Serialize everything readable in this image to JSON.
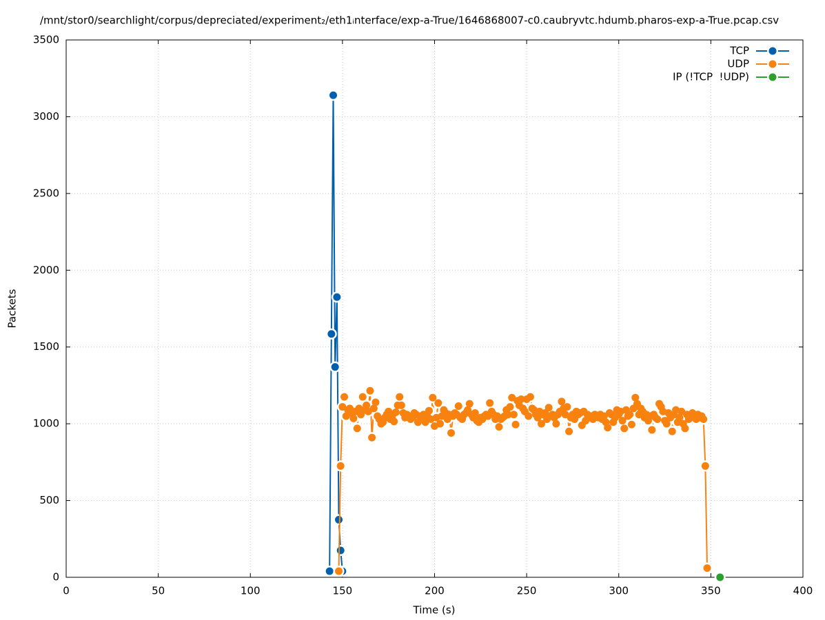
{
  "chart_data": {
    "type": "line",
    "title": "/mnt/stor0/searchlight/corpus/depreciated/experiment₂/eth1ᵢnterface/exp-a-True/1646868007-c0.caubryvtc.hdumb.pharos-exp-a-True.pcap.csv",
    "x_label": "Time (s)",
    "y_label": "Packets",
    "xlim": [
      0,
      400
    ],
    "xticks": [
      0,
      50,
      100,
      150,
      200,
      250,
      300,
      350,
      400
    ],
    "ylim": [
      0,
      3500
    ],
    "yticks": [
      0,
      500,
      1000,
      1500,
      2000,
      2500,
      3000,
      3500
    ],
    "grid": true,
    "legend": "top-right",
    "series": [
      {
        "name": "TCP",
        "color": "#0060ad",
        "x": [
          143,
          144,
          145,
          146,
          147,
          148,
          149,
          150
        ],
        "values": [
          40,
          1585,
          3140,
          1370,
          1825,
          375,
          175,
          40
        ]
      },
      {
        "name": "UDP",
        "color": "#f7820f",
        "x": [
          148,
          149,
          150,
          151,
          152,
          153,
          154,
          155,
          156,
          157,
          158,
          159,
          160,
          161,
          162,
          163,
          164,
          165,
          166,
          167,
          168,
          169,
          170,
          171,
          172,
          173,
          174,
          175,
          176,
          177,
          178,
          179,
          180,
          181,
          182,
          183,
          184,
          185,
          186,
          187,
          188,
          189,
          190,
          191,
          192,
          193,
          194,
          195,
          196,
          197,
          198,
          199,
          200,
          201,
          202,
          203,
          204,
          205,
          206,
          207,
          208,
          209,
          210,
          211,
          212,
          213,
          214,
          215,
          216,
          217,
          218,
          219,
          220,
          221,
          222,
          223,
          224,
          225,
          226,
          227,
          228,
          229,
          230,
          231,
          232,
          233,
          234,
          235,
          236,
          237,
          238,
          239,
          240,
          241,
          242,
          243,
          244,
          245,
          246,
          247,
          248,
          249,
          250,
          251,
          252,
          253,
          254,
          255,
          256,
          257,
          258,
          259,
          260,
          261,
          262,
          263,
          264,
          265,
          266,
          267,
          268,
          269,
          270,
          271,
          272,
          273,
          274,
          275,
          276,
          277,
          278,
          279,
          280,
          281,
          282,
          283,
          284,
          285,
          286,
          287,
          288,
          289,
          290,
          291,
          292,
          293,
          294,
          295,
          296,
          297,
          298,
          299,
          300,
          301,
          302,
          303,
          304,
          305,
          306,
          307,
          308,
          309,
          310,
          311,
          312,
          313,
          314,
          315,
          316,
          317,
          318,
          319,
          320,
          321,
          322,
          323,
          324,
          325,
          326,
          327,
          328,
          329,
          330,
          331,
          332,
          333,
          334,
          335,
          336,
          337,
          338,
          339,
          340,
          341,
          342,
          343,
          344,
          345,
          346,
          347,
          348
        ],
        "values": [
          40,
          725,
          1110,
          1175,
          1050,
          1090,
          1100,
          1070,
          1035,
          1080,
          970,
          1100,
          1060,
          1175,
          1090,
          1120,
          1080,
          1215,
          910,
          1100,
          1140,
          1050,
          1030,
          1000,
          1010,
          1040,
          1060,
          1080,
          1030,
          1050,
          1015,
          1075,
          1120,
          1175,
          1120,
          1070,
          1040,
          1060,
          1050,
          1030,
          1040,
          1070,
          1060,
          1010,
          1050,
          1040,
          1060,
          1010,
          1050,
          1085,
          1030,
          1170,
          985,
          1040,
          1135,
          1000,
          1050,
          1090,
          1070,
          1030,
          1060,
          940,
          1050,
          1070,
          1060,
          1115,
          1040,
          1030,
          1060,
          1070,
          1090,
          1130,
          1060,
          1040,
          1070,
          1020,
          1010,
          1040,
          1030,
          1050,
          1060,
          1050,
          1135,
          1080,
          1060,
          1030,
          1050,
          980,
          1030,
          1040,
          1050,
          1090,
          1060,
          1110,
          1170,
          1060,
          995,
          1150,
          1120,
          1160,
          1100,
          1080,
          1160,
          1050,
          1175,
          1100,
          1090,
          1060,
          1040,
          1080,
          1000,
          1060,
          1070,
          1030,
          1105,
          1050,
          1060,
          1040,
          1000,
          1060,
          1080,
          1145,
          1100,
          1060,
          1110,
          950,
          1040,
          1060,
          1030,
          1080,
          1060,
          1070,
          990,
          1080,
          1020,
          1060,
          1040,
          1050,
          1030,
          1060,
          1050,
          1040,
          1060,
          1030,
          1050,
          1010,
          975,
          1070,
          1060,
          1010,
          1040,
          1090,
          1060,
          1080,
          1020,
          970,
          1090,
          1050,
          1060,
          995,
          1100,
          1170,
          1130,
          1060,
          1100,
          1080,
          1040,
          1060,
          1020,
          1050,
          960,
          1060,
          1040,
          1030,
          1130,
          1110,
          1080,
          1020,
          1000,
          1070,
          1040,
          950,
          1060,
          1090,
          1010,
          1040,
          1080,
          1000,
          970,
          1060,
          1030,
          1050,
          1070,
          1040,
          1030,
          1060,
          1040,
          1050,
          1030,
          725,
          60
        ]
      },
      {
        "name": "IP (!TCP  !UDP)",
        "color": "#2ca02c",
        "x": [
          355
        ],
        "values": [
          0
        ]
      }
    ]
  }
}
